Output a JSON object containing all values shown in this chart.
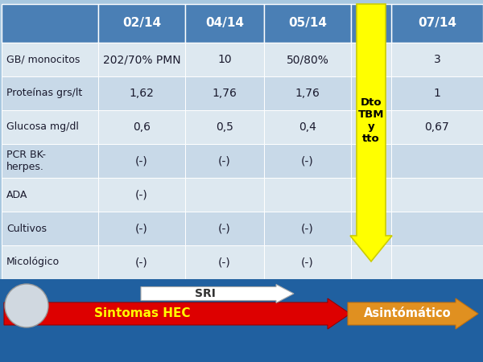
{
  "columns": [
    "",
    "02/14",
    "04/14",
    "05/14",
    "07/14"
  ],
  "rows": [
    [
      "GB/ monocitos",
      "202/70% PMN",
      "10",
      "50/80%",
      "3"
    ],
    [
      "Proteínas grs/lt",
      "1,62",
      "1,76",
      "1,76",
      "1"
    ],
    [
      "Glucosa mg/dl",
      "0,6",
      "0,5",
      "0,4",
      "0,67"
    ],
    [
      "PCR BK-\nherpes.",
      "(-)",
      "(-)",
      "(-)",
      ""
    ],
    [
      "ADA",
      "(-)",
      "",
      "",
      ""
    ],
    [
      "Cultivos",
      "(-)",
      "(-)",
      "(-)",
      ""
    ],
    [
      "Micológico",
      "(-)",
      "(-)",
      "(-)",
      ""
    ]
  ],
  "header_bg": "#4a7fb5",
  "header_text": "#ffffff",
  "row_bg_even": "#dde8f0",
  "row_bg_odd": "#c8d9e8",
  "cell_text": "#1a1a2e",
  "arrow_yellow_text": "Dto\nTBM\ny\ntto",
  "arrow_yellow_color": "#ffff00",
  "arrow_yellow_edge": "#cccc00",
  "arrow_red_color": "#dd0000",
  "arrow_red_text": "Sintomas HEC",
  "arrow_white_text": "SRI",
  "arrow_orange_text": "Asintómático",
  "arrow_orange_color": "#e09020",
  "bottom_bar_color": "#2060a0",
  "background_color": "#a8c8e0"
}
